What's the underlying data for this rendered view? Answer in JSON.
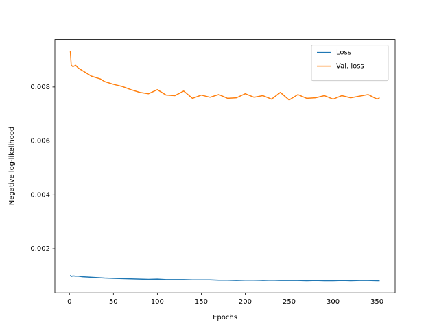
{
  "chart_data": {
    "type": "line",
    "xlabel": "Epochs",
    "ylabel": "Negative log-likelihood",
    "x": [
      1,
      2,
      4,
      7,
      10,
      15,
      20,
      25,
      30,
      35,
      40,
      50,
      60,
      70,
      80,
      90,
      100,
      110,
      120,
      130,
      140,
      150,
      160,
      170,
      180,
      190,
      200,
      210,
      220,
      230,
      240,
      250,
      260,
      270,
      280,
      290,
      300,
      310,
      320,
      330,
      340,
      350,
      353
    ],
    "series": [
      {
        "name": "Loss",
        "color": "#1f77b4",
        "values": [
          0.00103,
          0.00098,
          0.001,
          0.00099,
          0.00099,
          0.00097,
          0.00096,
          0.00095,
          0.00094,
          0.00093,
          0.00092,
          0.00091,
          0.0009,
          0.00089,
          0.00088,
          0.00087,
          0.00088,
          0.00086,
          0.00086,
          0.00086,
          0.00085,
          0.00085,
          0.00085,
          0.00084,
          0.00084,
          0.00083,
          0.00084,
          0.00084,
          0.00083,
          0.00084,
          0.00083,
          0.00083,
          0.00083,
          0.00082,
          0.00083,
          0.00082,
          0.00082,
          0.00083,
          0.00082,
          0.00083,
          0.00083,
          0.00082,
          0.00082
        ]
      },
      {
        "name": "Val. loss",
        "color": "#ff7f0e",
        "values": [
          0.00932,
          0.0088,
          0.00875,
          0.0088,
          0.0087,
          0.0086,
          0.0085,
          0.0084,
          0.00835,
          0.0083,
          0.0082,
          0.0081,
          0.00802,
          0.0079,
          0.0078,
          0.00775,
          0.0079,
          0.0077,
          0.00768,
          0.00785,
          0.00758,
          0.0077,
          0.00762,
          0.00772,
          0.00758,
          0.0076,
          0.00775,
          0.00762,
          0.00768,
          0.00755,
          0.0078,
          0.00752,
          0.00772,
          0.00758,
          0.0076,
          0.00768,
          0.00755,
          0.00768,
          0.0076,
          0.00766,
          0.00772,
          0.00755,
          0.0076
        ]
      }
    ],
    "xlim": [
      -16.6,
      370.6
    ],
    "ylim": [
      0.00037,
      0.00976
    ],
    "xticks": [
      0,
      50,
      100,
      150,
      200,
      250,
      300,
      350
    ],
    "yticks": [
      0.002,
      0.004,
      0.006,
      0.008
    ],
    "legend": "upper right",
    "grid": false
  }
}
